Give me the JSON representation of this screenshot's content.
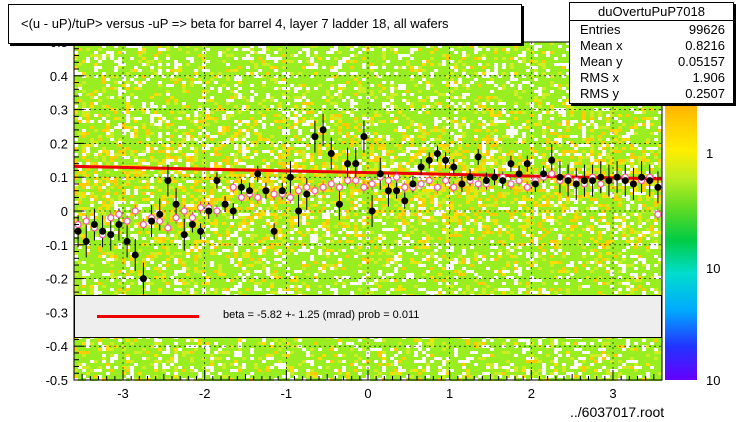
{
  "title": "<(u - uP)/tuP> versus  -uP => beta for barrel 4, layer 7 ladder 18, all wafers",
  "stats": {
    "name": "duOvertuPuP7018",
    "rows": [
      {
        "label": "Entries",
        "value": "99626"
      },
      {
        "label": "Mean x",
        "value": "0.8216"
      },
      {
        "label": "Mean y",
        "value": "0.05157"
      },
      {
        "label": "RMS x",
        "value": "1.906"
      },
      {
        "label": "RMS y",
        "value": "0.2507"
      }
    ]
  },
  "fit_legend": "beta =    -5.82 +-  1.25 (mrad) prob = 0.011",
  "footer": "../6037017.root",
  "colors": {
    "fit_line": "#ee0000",
    "black_points": "#000000",
    "open_points": "#ff55aa",
    "heat_dominant": "#99ee22",
    "heat_high": "#ffcc00",
    "frame": "#000000"
  },
  "chart_data": {
    "type": "heatmap",
    "xlim": [
      -3.6,
      3.6
    ],
    "ylim": [
      -0.5,
      0.5
    ],
    "x_ticks": [
      "-3",
      "-2",
      "-1",
      "0",
      "1",
      "2",
      "3"
    ],
    "y_ticks": [
      "-0.5",
      "-0.4",
      "-0.3",
      "-0.2",
      "-0.1",
      "0",
      "0.1",
      "0.2",
      "0.3",
      "0.4",
      "0.5"
    ],
    "z_scale": "log",
    "z_ticks": [
      "1",
      "10",
      "10"
    ],
    "fit_line": {
      "x": [
        -3.6,
        3.6
      ],
      "y": [
        0.132,
        0.095
      ]
    },
    "series": [
      {
        "marker": "filled-circle",
        "x": [
          -3.55,
          -3.45,
          -3.35,
          -3.25,
          -3.15,
          -3.05,
          -2.95,
          -2.85,
          -2.75,
          -2.65,
          -2.55,
          -2.45,
          -2.35,
          -2.25,
          -2.15,
          -2.05,
          -1.95,
          -1.85,
          -1.75,
          -1.65,
          -1.55,
          -1.45,
          -1.35,
          -1.25,
          -1.15,
          -1.05,
          -0.95,
          -0.85,
          -0.75,
          -0.65,
          -0.55,
          -0.45,
          -0.35,
          -0.25,
          -0.15,
          -0.05,
          0.05,
          0.15,
          0.25,
          0.35,
          0.45,
          0.55,
          0.65,
          0.75,
          0.85,
          0.95,
          1.05,
          1.15,
          1.25,
          1.35,
          1.45,
          1.55,
          1.65,
          1.75,
          1.85,
          1.95,
          2.05,
          2.15,
          2.25,
          2.35,
          2.45,
          2.55,
          2.65,
          2.75,
          2.85,
          2.95,
          3.05,
          3.15,
          3.25,
          3.35,
          3.45,
          3.55
        ],
        "y": [
          -0.06,
          -0.09,
          -0.04,
          -0.06,
          -0.07,
          -0.04,
          -0.09,
          -0.13,
          -0.2,
          -0.03,
          -0.01,
          0.09,
          0.02,
          -0.07,
          -0.04,
          -0.06,
          0.0,
          0.09,
          0.02,
          0.0,
          0.07,
          0.06,
          0.11,
          0.06,
          -0.06,
          0.06,
          0.1,
          0.0,
          0.05,
          0.22,
          0.24,
          0.17,
          0.02,
          0.14,
          0.14,
          0.22,
          0.0,
          0.11,
          0.06,
          0.06,
          0.03,
          0.08,
          0.13,
          0.15,
          0.17,
          0.15,
          0.13,
          0.08,
          0.1,
          0.16,
          0.09,
          0.1,
          0.09,
          0.14,
          0.11,
          0.14,
          0.08,
          0.11,
          0.15,
          0.1,
          0.09,
          0.08,
          0.09,
          0.09,
          0.1,
          0.09,
          0.1,
          0.09,
          0.08,
          0.1,
          0.09,
          0.07
        ]
      },
      {
        "marker": "open-circle",
        "x": [
          -3.55,
          -3.45,
          -3.35,
          -3.25,
          -3.15,
          -3.05,
          -2.95,
          -2.85,
          -2.75,
          -2.65,
          -2.55,
          -2.45,
          -2.35,
          -2.25,
          -2.15,
          -2.05,
          -1.95,
          -1.85,
          -1.75,
          -1.65,
          -1.55,
          -1.45,
          -1.35,
          -1.25,
          -1.15,
          -1.05,
          -0.95,
          -0.85,
          -0.75,
          -0.65,
          -0.55,
          -0.45,
          -0.35,
          -0.25,
          -0.15,
          -0.05,
          0.05,
          0.15,
          0.25,
          0.35,
          0.45,
          0.55,
          0.65,
          0.75,
          0.85,
          0.95,
          1.05,
          1.15,
          1.25,
          1.35,
          1.45,
          1.55,
          1.65,
          1.75,
          1.85,
          1.95,
          2.05,
          2.15,
          2.25,
          2.35,
          2.45,
          2.55,
          2.65,
          2.75,
          2.85,
          2.95,
          3.05,
          3.15,
          3.25,
          3.35,
          3.45,
          3.55
        ],
        "y": [
          -0.04,
          -0.03,
          -0.05,
          -0.07,
          -0.02,
          -0.01,
          -0.03,
          0.0,
          -0.04,
          -0.02,
          -0.03,
          -0.05,
          -0.02,
          0.0,
          -0.02,
          0.01,
          0.01,
          0.0,
          0.02,
          0.07,
          0.04,
          0.05,
          0.04,
          0.06,
          0.05,
          0.05,
          0.04,
          0.06,
          0.07,
          0.06,
          0.07,
          0.08,
          0.07,
          0.09,
          0.09,
          0.07,
          0.08,
          0.1,
          0.09,
          0.1,
          0.07,
          0.07,
          0.08,
          0.09,
          0.07,
          0.09,
          0.07,
          0.08,
          0.09,
          0.08,
          0.08,
          0.1,
          0.1,
          0.08,
          0.09,
          0.07,
          0.09,
          0.1,
          0.11,
          0.09,
          0.1,
          0.09,
          0.08,
          0.1,
          0.08,
          0.09,
          0.1,
          0.1,
          0.08,
          0.09,
          0.1,
          -0.01
        ]
      }
    ]
  }
}
